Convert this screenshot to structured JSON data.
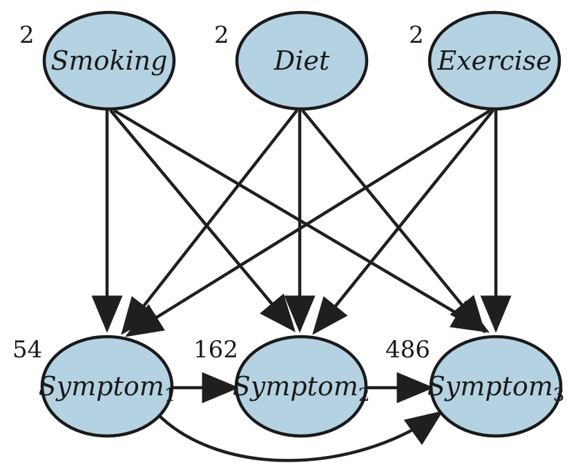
{
  "nodes": {
    "smoking": {
      "label": "Smoking",
      "subscript": "",
      "count": "2"
    },
    "diet": {
      "label": "Diet",
      "subscript": "",
      "count": "2"
    },
    "exercise": {
      "label": "Exercise",
      "subscript": "",
      "count": "2"
    },
    "symptom1": {
      "label": "Symptom",
      "subscript": "1",
      "count": "54"
    },
    "symptom2": {
      "label": "Symptom",
      "subscript": "2",
      "count": "162"
    },
    "symptom3": {
      "label": "Symptom",
      "subscript": "3",
      "count": "486"
    }
  },
  "edges": [
    {
      "from": "smoking",
      "to": "symptom1"
    },
    {
      "from": "smoking",
      "to": "symptom2"
    },
    {
      "from": "smoking",
      "to": "symptom3"
    },
    {
      "from": "diet",
      "to": "symptom1"
    },
    {
      "from": "diet",
      "to": "symptom2"
    },
    {
      "from": "diet",
      "to": "symptom3"
    },
    {
      "from": "exercise",
      "to": "symptom1"
    },
    {
      "from": "exercise",
      "to": "symptom2"
    },
    {
      "from": "exercise",
      "to": "symptom3"
    },
    {
      "from": "symptom1",
      "to": "symptom2"
    },
    {
      "from": "symptom2",
      "to": "symptom3"
    },
    {
      "from": "symptom1",
      "to": "symptom3"
    }
  ],
  "colors": {
    "node_fill": "#b4d2e2",
    "stroke": "#1a1a1a"
  }
}
